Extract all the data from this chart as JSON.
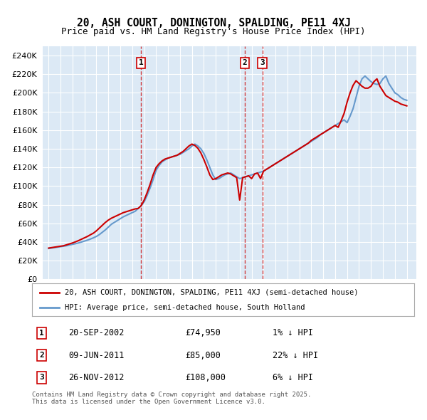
{
  "title": "20, ASH COURT, DONINGTON, SPALDING, PE11 4XJ",
  "subtitle": "Price paid vs. HM Land Registry's House Price Index (HPI)",
  "ytick_vals": [
    0,
    20000,
    40000,
    60000,
    80000,
    100000,
    120000,
    140000,
    160000,
    180000,
    200000,
    220000,
    240000
  ],
  "ylim": [
    0,
    250000
  ],
  "xlim_start": 1994.5,
  "xlim_end": 2025.8,
  "background_color": "#dce9f5",
  "grid_color": "#ffffff",
  "legend_label_red": "20, ASH COURT, DONINGTON, SPALDING, PE11 4XJ (semi-detached house)",
  "legend_label_blue": "HPI: Average price, semi-detached house, South Holland",
  "sale_info": [
    {
      "label": "1",
      "date": "20-SEP-2002",
      "price": "£74,950",
      "pct": "1% ↓ HPI",
      "year": 2002.72
    },
    {
      "label": "2",
      "date": "09-JUN-2011",
      "price": "£85,000",
      "pct": "22% ↓ HPI",
      "year": 2011.44
    },
    {
      "label": "3",
      "date": "26-NOV-2012",
      "price": "£108,000",
      "pct": "6% ↓ HPI",
      "year": 2012.9
    }
  ],
  "footer": "Contains HM Land Registry data © Crown copyright and database right 2025.\nThis data is licensed under the Open Government Licence v3.0.",
  "red_color": "#cc0000",
  "blue_color": "#6699cc",
  "hpi_years": [
    1995,
    1995.25,
    1995.5,
    1995.75,
    1996,
    1996.25,
    1996.5,
    1996.75,
    1997,
    1997.25,
    1997.5,
    1997.75,
    1998,
    1998.25,
    1998.5,
    1998.75,
    1999,
    1999.25,
    1999.5,
    1999.75,
    2000,
    2000.25,
    2000.5,
    2000.75,
    2001,
    2001.25,
    2001.5,
    2001.75,
    2002,
    2002.25,
    2002.5,
    2002.75,
    2003,
    2003.25,
    2003.5,
    2003.75,
    2004,
    2004.25,
    2004.5,
    2004.75,
    2005,
    2005.25,
    2005.5,
    2005.75,
    2006,
    2006.25,
    2006.5,
    2006.75,
    2007,
    2007.25,
    2007.5,
    2007.75,
    2008,
    2008.25,
    2008.5,
    2008.75,
    2009,
    2009.25,
    2009.5,
    2009.75,
    2010,
    2010.25,
    2010.5,
    2010.75,
    2011,
    2011.25,
    2011.5,
    2011.75,
    2012,
    2012.25,
    2012.5,
    2012.75,
    2013,
    2013.25,
    2013.5,
    2013.75,
    2014,
    2014.25,
    2014.5,
    2014.75,
    2015,
    2015.25,
    2015.5,
    2015.75,
    2016,
    2016.25,
    2016.5,
    2016.75,
    2017,
    2017.25,
    2017.5,
    2017.75,
    2018,
    2018.25,
    2018.5,
    2018.75,
    2019,
    2019.25,
    2019.5,
    2019.75,
    2020,
    2020.25,
    2020.5,
    2020.75,
    2021,
    2021.25,
    2021.5,
    2021.75,
    2022,
    2022.25,
    2022.5,
    2022.75,
    2023,
    2023.25,
    2023.5,
    2023.75,
    2024,
    2024.25,
    2024.5,
    2024.75,
    2025
  ],
  "hpi_values": [
    33000,
    33500,
    34000,
    34500,
    35000,
    35500,
    36000,
    36800,
    37500,
    38200,
    39000,
    40000,
    41000,
    42000,
    43200,
    44500,
    46000,
    48000,
    50500,
    53000,
    56000,
    59000,
    61000,
    63000,
    65000,
    67000,
    68500,
    70000,
    71500,
    73000,
    76000,
    79000,
    83000,
    90000,
    98000,
    107000,
    117000,
    122000,
    126000,
    128000,
    130000,
    131000,
    132000,
    133000,
    134000,
    136000,
    138000,
    140000,
    143000,
    145000,
    143000,
    140000,
    135000,
    128000,
    120000,
    112000,
    107000,
    108000,
    110000,
    112000,
    113000,
    114000,
    112000,
    110000,
    108000,
    109000,
    110000,
    111000,
    112000,
    113000,
    114000,
    115000,
    116000,
    118000,
    120000,
    122000,
    124000,
    126000,
    128000,
    130000,
    132000,
    134000,
    136000,
    138000,
    140000,
    142000,
    144000,
    146000,
    148000,
    150000,
    152000,
    155000,
    157000,
    159000,
    161000,
    163000,
    165000,
    167000,
    169000,
    171000,
    168000,
    175000,
    183000,
    195000,
    207000,
    215000,
    218000,
    215000,
    212000,
    210000,
    209000,
    210000,
    215000,
    218000,
    210000,
    205000,
    200000,
    198000,
    195000,
    193000,
    192000
  ],
  "price_years": [
    1995,
    1995.25,
    1995.5,
    1995.75,
    1996,
    1996.25,
    1996.5,
    1996.75,
    1997,
    1997.25,
    1997.5,
    1997.75,
    1998,
    1998.25,
    1998.5,
    1998.75,
    1999,
    1999.25,
    1999.5,
    1999.75,
    2000,
    2000.25,
    2000.5,
    2000.75,
    2001,
    2001.25,
    2001.5,
    2001.75,
    2002,
    2002.25,
    2002.5,
    2002.75,
    2003,
    2003.25,
    2003.5,
    2003.75,
    2004,
    2004.25,
    2004.5,
    2004.75,
    2005,
    2005.25,
    2005.5,
    2005.75,
    2006,
    2006.25,
    2006.5,
    2006.75,
    2007,
    2007.25,
    2007.5,
    2007.75,
    2008,
    2008.25,
    2008.5,
    2008.75,
    2009,
    2009.25,
    2009.5,
    2009.75,
    2010,
    2010.25,
    2010.5,
    2010.75,
    2011,
    2011.25,
    2011.5,
    2011.75,
    2012,
    2012.25,
    2012.5,
    2012.75,
    2013,
    2013.25,
    2013.5,
    2013.75,
    2014,
    2014.25,
    2014.5,
    2014.75,
    2015,
    2015.25,
    2015.5,
    2015.75,
    2016,
    2016.25,
    2016.5,
    2016.75,
    2017,
    2017.25,
    2017.5,
    2017.75,
    2018,
    2018.25,
    2018.5,
    2018.75,
    2019,
    2019.25,
    2019.5,
    2019.75,
    2020,
    2020.25,
    2020.5,
    2020.75,
    2021,
    2021.25,
    2021.5,
    2021.75,
    2022,
    2022.25,
    2022.5,
    2022.75,
    2023,
    2023.25,
    2023.5,
    2023.75,
    2024,
    2024.25,
    2024.5,
    2024.75,
    2025
  ],
  "price_values": [
    33500,
    34000,
    34500,
    35000,
    35500,
    36000,
    37000,
    38000,
    39000,
    40200,
    41500,
    43000,
    44500,
    46000,
    47800,
    49500,
    52000,
    55000,
    58000,
    61000,
    63500,
    65500,
    67000,
    68500,
    70000,
    71500,
    72500,
    73500,
    74500,
    75500,
    76000,
    79000,
    85000,
    93000,
    102000,
    112000,
    120000,
    124000,
    127000,
    129000,
    130000,
    131000,
    132000,
    133000,
    135000,
    137000,
    140000,
    143000,
    145000,
    143500,
    140500,
    135500,
    128500,
    120500,
    112000,
    107000,
    108000,
    110000,
    112000,
    113000,
    114000,
    113000,
    111000,
    109000,
    85000,
    109000,
    110000,
    111000,
    108000,
    113000,
    114000,
    108000,
    116000,
    118000,
    120000,
    122000,
    124000,
    126000,
    128000,
    130000,
    132000,
    134000,
    136000,
    138000,
    140000,
    142000,
    144000,
    146000,
    149000,
    151000,
    153000,
    155000,
    157000,
    159000,
    161000,
    163000,
    165000,
    163000,
    170000,
    178000,
    190000,
    200000,
    208000,
    213000,
    210000,
    207000,
    205000,
    205000,
    207000,
    212000,
    215000,
    207000,
    202000,
    197000,
    195000,
    193000,
    191000,
    190000,
    188000,
    187000,
    186000
  ]
}
